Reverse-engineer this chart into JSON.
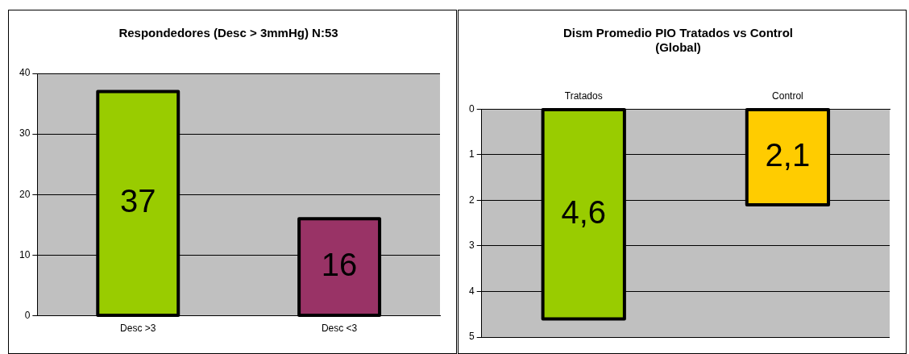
{
  "chart_data": [
    {
      "type": "bar",
      "title": "Respondedores (Desc > 3mmHg) N:53",
      "categories": [
        "Desc >3",
        "Desc <3"
      ],
      "values": [
        37,
        16
      ],
      "colors": [
        "#99cc00",
        "#993366"
      ],
      "ylim": [
        0,
        40
      ],
      "yticks": [
        0,
        10,
        20,
        30,
        40
      ],
      "grid": "y",
      "data_labels": true
    },
    {
      "type": "bar",
      "title": [
        "Dism Promedio PIO Tratados vs Control",
        "(Global)"
      ],
      "categories": [
        "Tratados",
        "Control"
      ],
      "values": [
        4.6,
        2.1
      ],
      "colors": [
        "#99cc00",
        "#ffcc00"
      ],
      "ylim": [
        5,
        0
      ],
      "yticks": [
        0,
        1,
        2,
        3,
        4,
        5
      ],
      "grid": "y",
      "value_labels": [
        "4,6",
        "2,1"
      ]
    }
  ]
}
